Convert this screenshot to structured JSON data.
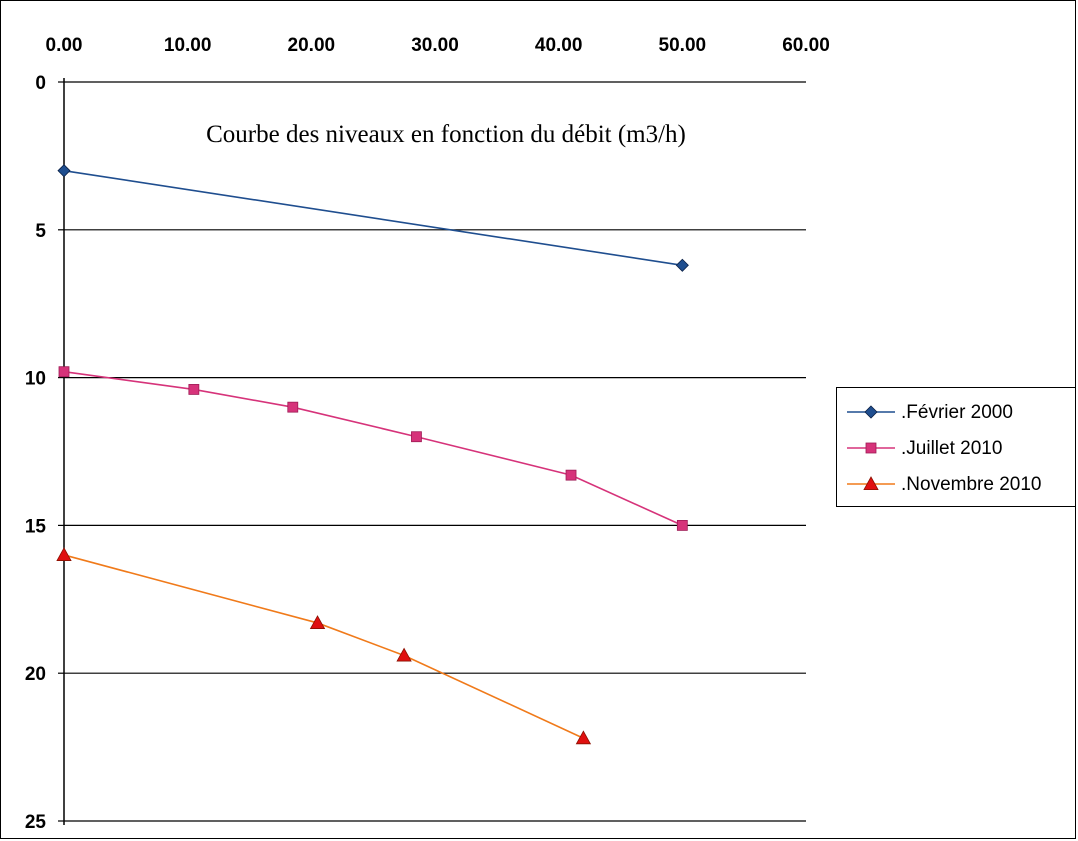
{
  "chart_data": {
    "type": "line",
    "title": "Courbe des niveaux en fonction du débit (m3/h)",
    "xlabel": "",
    "ylabel": "",
    "x_axis_position": "top",
    "y_axis_inverted": true,
    "xlim": [
      0,
      60
    ],
    "ylim": [
      0,
      25
    ],
    "x_ticks": [
      "0.00",
      "10.00",
      "20.00",
      "30.00",
      "40.00",
      "50.00",
      "60.00"
    ],
    "y_ticks": [
      "0",
      "5",
      "10",
      "15",
      "20",
      "25"
    ],
    "grid": "horizontal",
    "legend_position": "right",
    "series": [
      {
        "name": ".Février 2000",
        "color": "#1F4E8F",
        "marker": "diamond",
        "points": [
          [
            0,
            3.0
          ],
          [
            50,
            6.2
          ]
        ]
      },
      {
        "name": ".Juillet 2010",
        "color": "#D6337A",
        "marker": "square",
        "points": [
          [
            0,
            9.8
          ],
          [
            10.5,
            10.4
          ],
          [
            18.5,
            11.0
          ],
          [
            28.5,
            12.0
          ],
          [
            41.0,
            13.3
          ],
          [
            50,
            15.0
          ]
        ]
      },
      {
        "name": ".Novembre 2010",
        "color": "#F07A1A",
        "marker_color": "#E01010",
        "marker": "triangle",
        "points": [
          [
            0,
            16.0
          ],
          [
            20.5,
            18.3
          ],
          [
            27.5,
            19.4
          ],
          [
            42.0,
            22.2
          ]
        ]
      }
    ]
  }
}
